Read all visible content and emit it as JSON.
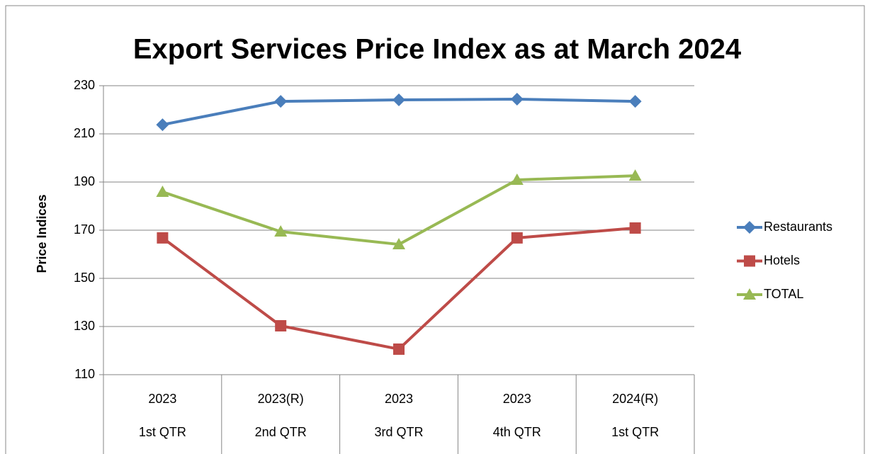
{
  "chart_data": {
    "type": "line",
    "title": "Export Services Price Index as at March 2024",
    "y_label": "Price Indices",
    "categories": [
      "2023",
      "2023(R)",
      "2023",
      "2023",
      "2024(R)"
    ],
    "quarters": [
      "1st QTR",
      "2nd QTR",
      "3rd QTR",
      "4th QTR",
      "1st QTR"
    ],
    "series": [
      {
        "name": "Restaurants",
        "color": "#4a7ebb",
        "marker": "diamond",
        "values": [
          213.8,
          223.5,
          224.1,
          224.4,
          223.5
        ]
      },
      {
        "name": "Hotels",
        "color": "#be4b48",
        "marker": "square",
        "values": [
          166.8,
          130.3,
          120.6,
          166.8,
          170.9
        ]
      },
      {
        "name": "TOTAL",
        "color": "#98b954",
        "marker": "triangle",
        "values": [
          185.9,
          169.4,
          164.1,
          190.9,
          192.6
        ]
      }
    ],
    "ylim": [
      110,
      230
    ],
    "yticks": [
      110,
      130,
      150,
      170,
      190,
      210,
      230
    ],
    "grid": true,
    "legend": "right"
  }
}
